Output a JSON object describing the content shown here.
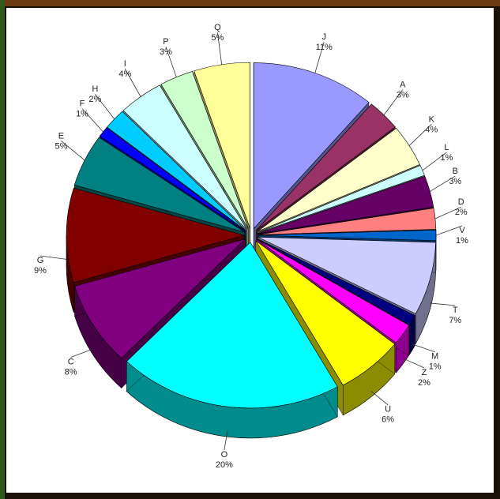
{
  "chart_data": {
    "type": "pie3d",
    "categories": [
      "J",
      "A",
      "K",
      "L",
      "B",
      "D",
      "V",
      "T",
      "M",
      "Z",
      "U",
      "O",
      "C",
      "G",
      "E",
      "F",
      "H",
      "I",
      "P",
      "Q"
    ],
    "values": [
      11,
      3,
      4,
      1,
      3,
      2,
      1,
      7,
      1,
      2,
      6,
      20,
      8,
      9,
      5,
      1,
      2,
      4,
      3,
      5
    ],
    "value_labels": [
      "11%",
      "3%",
      "4%",
      "1%",
      "3%",
      "2%",
      "1%",
      "7%",
      "1%",
      "2%",
      "6%",
      "20%",
      "8%",
      "9%",
      "5%",
      "1%",
      "2%",
      "4%",
      "3%",
      "5%"
    ],
    "colors": [
      "#9999ff",
      "#993366",
      "#ffffcc",
      "#ccffff",
      "#660066",
      "#ff8080",
      "#0066cc",
      "#ccccff",
      "#000080",
      "#ff00ff",
      "#ffff00",
      "#00ffff",
      "#800080",
      "#800000",
      "#008080",
      "#0000ff",
      "#00ccff",
      "#ccffff",
      "#ccffcc",
      "#ffff99"
    ]
  }
}
